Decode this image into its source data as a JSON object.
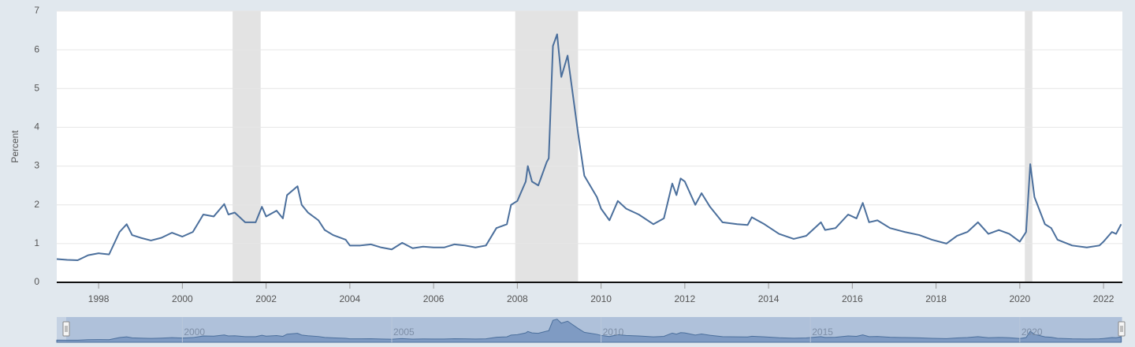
{
  "chart_data": {
    "type": "line",
    "y_label": "Percent",
    "x": [
      1997.0,
      1997.25,
      1997.5,
      1997.75,
      1998.0,
      1998.25,
      1998.5,
      1998.67,
      1998.8,
      1999.0,
      1999.25,
      1999.5,
      1999.75,
      2000.0,
      2000.25,
      2000.5,
      2000.75,
      2001.0,
      2001.1,
      2001.25,
      2001.5,
      2001.75,
      2001.9,
      2002.0,
      2002.25,
      2002.4,
      2002.5,
      2002.75,
      2002.85,
      2003.0,
      2003.25,
      2003.4,
      2003.6,
      2003.9,
      2004.0,
      2004.25,
      2004.5,
      2004.75,
      2005.0,
      2005.25,
      2005.5,
      2005.75,
      2006.0,
      2006.25,
      2006.5,
      2006.75,
      2007.0,
      2007.25,
      2007.5,
      2007.75,
      2007.85,
      2008.0,
      2008.2,
      2008.25,
      2008.35,
      2008.5,
      2008.7,
      2008.75,
      2008.85,
      2008.95,
      2009.05,
      2009.2,
      2009.45,
      2009.6,
      2009.9,
      2010.0,
      2010.2,
      2010.4,
      2010.6,
      2010.9,
      2011.25,
      2011.5,
      2011.7,
      2011.8,
      2011.9,
      2012.0,
      2012.25,
      2012.4,
      2012.6,
      2012.9,
      2013.25,
      2013.5,
      2013.6,
      2013.9,
      2014.25,
      2014.6,
      2014.9,
      2015.25,
      2015.35,
      2015.6,
      2015.9,
      2016.1,
      2016.25,
      2016.4,
      2016.6,
      2016.9,
      2017.25,
      2017.6,
      2017.9,
      2018.25,
      2018.5,
      2018.75,
      2019.0,
      2019.25,
      2019.5,
      2019.75,
      2020.0,
      2020.15,
      2020.25,
      2020.35,
      2020.6,
      2020.75,
      2020.9,
      2021.25,
      2021.6,
      2021.9,
      2022.0,
      2022.2,
      2022.3,
      2022.42
    ],
    "series": [
      {
        "name": "Percent",
        "color": "#4b6f9c",
        "values": [
          0.6,
          0.58,
          0.57,
          0.7,
          0.75,
          0.72,
          1.3,
          1.5,
          1.22,
          1.15,
          1.08,
          1.15,
          1.28,
          1.18,
          1.3,
          1.75,
          1.7,
          2.02,
          1.75,
          1.8,
          1.55,
          1.55,
          1.95,
          1.7,
          1.85,
          1.65,
          2.25,
          2.48,
          2.0,
          1.8,
          1.6,
          1.35,
          1.22,
          1.1,
          0.95,
          0.95,
          0.98,
          0.9,
          0.85,
          1.02,
          0.88,
          0.92,
          0.9,
          0.9,
          0.98,
          0.95,
          0.9,
          0.95,
          1.4,
          1.5,
          2.0,
          2.1,
          2.6,
          3.0,
          2.6,
          2.5,
          3.1,
          3.2,
          6.1,
          6.4,
          5.3,
          5.85,
          3.85,
          2.75,
          2.2,
          1.9,
          1.6,
          2.1,
          1.9,
          1.75,
          1.5,
          1.65,
          2.55,
          2.25,
          2.68,
          2.6,
          2.0,
          2.3,
          1.95,
          1.55,
          1.5,
          1.48,
          1.68,
          1.5,
          1.25,
          1.12,
          1.2,
          1.55,
          1.35,
          1.4,
          1.75,
          1.65,
          2.05,
          1.55,
          1.6,
          1.4,
          1.3,
          1.22,
          1.1,
          1.0,
          1.2,
          1.3,
          1.55,
          1.25,
          1.35,
          1.25,
          1.05,
          1.3,
          3.05,
          2.2,
          1.5,
          1.4,
          1.1,
          0.95,
          0.9,
          0.95,
          1.05,
          1.3,
          1.25,
          1.5
        ]
      }
    ],
    "recessions": [
      [
        2001.2,
        2001.87
      ],
      [
        2007.95,
        2009.45
      ],
      [
        2020.12,
        2020.3
      ]
    ],
    "xlim": [
      1997.0,
      2022.45
    ],
    "xticks": [
      1998,
      2000,
      2002,
      2004,
      2006,
      2008,
      2010,
      2012,
      2014,
      2016,
      2018,
      2020,
      2022
    ],
    "ylim": [
      0,
      7
    ],
    "yticks": [
      0,
      1,
      2,
      3,
      4,
      5,
      6,
      7
    ],
    "grid": true,
    "navigator_xticks": [
      2000,
      2005,
      2010,
      2015,
      2020
    ]
  }
}
